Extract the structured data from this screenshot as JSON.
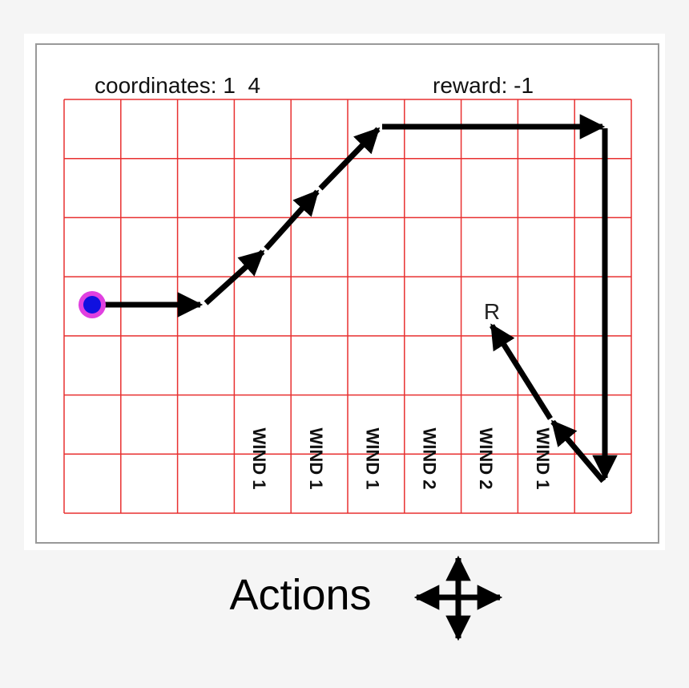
{
  "header": {
    "coordinates": "coordinates: 1  4",
    "reward": "reward: -1"
  },
  "grid": {
    "wind_labels": [
      "WIND 1",
      "WIND 1",
      "WIND 1",
      "WIND 2",
      "WIND 2",
      "WIND 1"
    ],
    "goal": "R"
  },
  "footer": {
    "actions": "Actions"
  }
}
